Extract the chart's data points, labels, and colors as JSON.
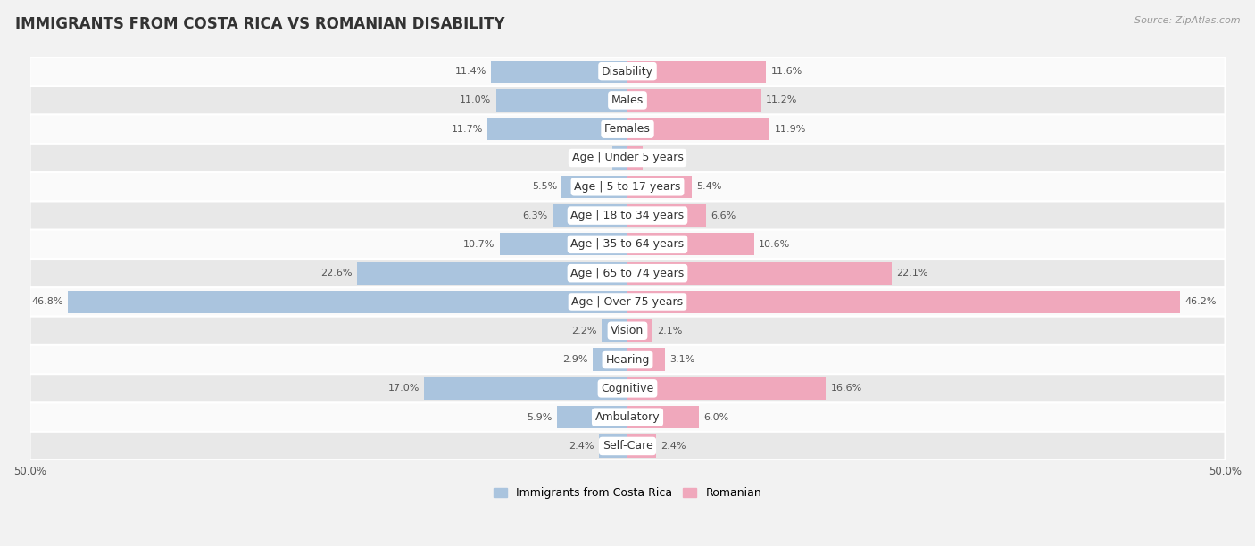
{
  "title": "IMMIGRANTS FROM COSTA RICA VS ROMANIAN DISABILITY",
  "source": "Source: ZipAtlas.com",
  "categories": [
    "Disability",
    "Males",
    "Females",
    "Age | Under 5 years",
    "Age | 5 to 17 years",
    "Age | 18 to 34 years",
    "Age | 35 to 64 years",
    "Age | 65 to 74 years",
    "Age | Over 75 years",
    "Vision",
    "Hearing",
    "Cognitive",
    "Ambulatory",
    "Self-Care"
  ],
  "left_values": [
    11.4,
    11.0,
    11.7,
    1.3,
    5.5,
    6.3,
    10.7,
    22.6,
    46.8,
    2.2,
    2.9,
    17.0,
    5.9,
    2.4
  ],
  "right_values": [
    11.6,
    11.2,
    11.9,
    1.3,
    5.4,
    6.6,
    10.6,
    22.1,
    46.2,
    2.1,
    3.1,
    16.6,
    6.0,
    2.4
  ],
  "left_color": "#aac4de",
  "right_color": "#f0a8bc",
  "left_label": "Immigrants from Costa Rica",
  "right_label": "Romanian",
  "axis_max": 50.0,
  "background_color": "#f2f2f2",
  "row_bg_light": "#fafafa",
  "row_bg_dark": "#e8e8e8",
  "title_fontsize": 12,
  "label_fontsize": 9,
  "value_fontsize": 8,
  "bar_height": 0.78
}
